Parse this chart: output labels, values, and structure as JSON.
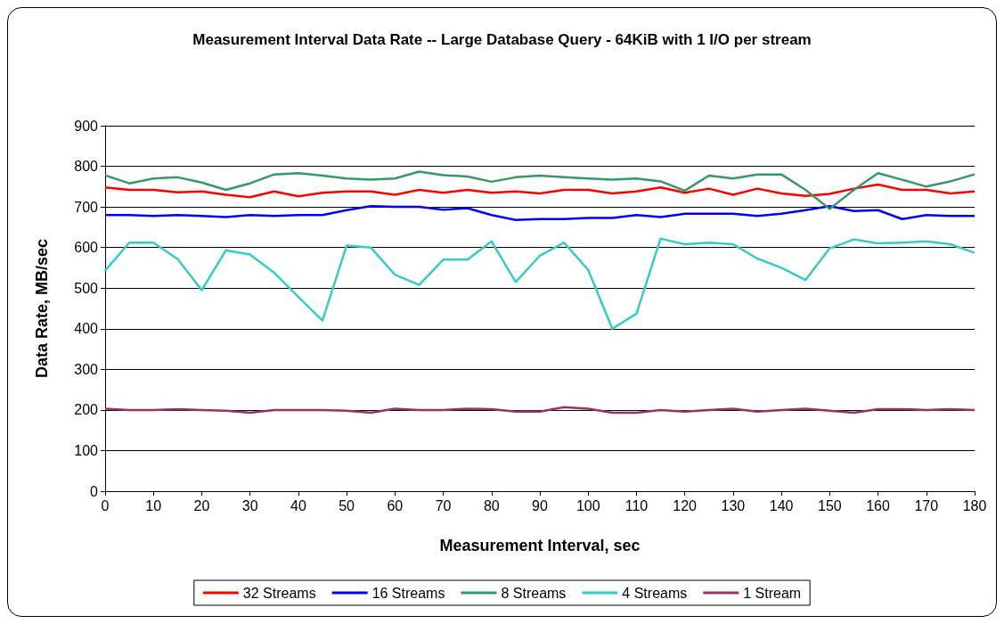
{
  "chart_data": {
    "type": "line",
    "title": "Measurement Interval Data Rate -- Large Database Query - 64KiB with 1 I/O per stream",
    "xlabel": "Measurement Interval, sec",
    "ylabel": "Data Rate, MB/sec",
    "x": [
      0,
      5,
      10,
      15,
      20,
      25,
      30,
      35,
      40,
      45,
      50,
      55,
      60,
      65,
      70,
      75,
      80,
      85,
      90,
      95,
      100,
      105,
      110,
      115,
      120,
      125,
      130,
      135,
      140,
      145,
      150,
      155,
      160,
      165,
      170,
      175,
      180
    ],
    "xlim": [
      0,
      180
    ],
    "xticks": [
      0,
      10,
      20,
      30,
      40,
      50,
      60,
      70,
      80,
      90,
      100,
      110,
      120,
      130,
      140,
      150,
      160,
      170,
      180
    ],
    "ylim": [
      0,
      900
    ],
    "yticks": [
      0,
      100,
      200,
      300,
      400,
      500,
      600,
      700,
      800,
      900
    ],
    "grid": "y",
    "legend": "bottom",
    "marker": "none",
    "line_style": "solid",
    "series": [
      {
        "name": "32 Streams",
        "color": "#ff0000",
        "values": [
          748,
          742,
          742,
          736,
          738,
          730,
          724,
          738,
          726,
          735,
          738,
          738,
          730,
          742,
          735,
          742,
          735,
          738,
          733,
          742,
          742,
          733,
          738,
          748,
          735,
          745,
          730,
          745,
          733,
          727,
          732,
          745,
          755,
          742,
          742,
          733,
          738
        ]
      },
      {
        "name": "16 Streams",
        "color": "#0000ff",
        "values": [
          680,
          680,
          678,
          680,
          678,
          675,
          680,
          678,
          680,
          680,
          692,
          702,
          700,
          700,
          693,
          697,
          680,
          668,
          670,
          670,
          673,
          673,
          680,
          675,
          683,
          683,
          683,
          678,
          683,
          692,
          702,
          690,
          692,
          670,
          680,
          678,
          678
        ]
      },
      {
        "name": "8 Streams",
        "color": "#339966",
        "values": [
          778,
          758,
          770,
          773,
          760,
          742,
          758,
          780,
          783,
          777,
          770,
          767,
          770,
          787,
          778,
          775,
          762,
          773,
          777,
          773,
          770,
          767,
          770,
          763,
          740,
          777,
          770,
          780,
          780,
          742,
          695,
          742,
          783,
          767,
          750,
          763,
          780
        ]
      },
      {
        "name": "4 Streams",
        "color": "#33cccc",
        "values": [
          543,
          612,
          612,
          572,
          495,
          593,
          583,
          538,
          478,
          420,
          605,
          600,
          533,
          508,
          570,
          570,
          615,
          515,
          580,
          612,
          545,
          400,
          437,
          622,
          608,
          612,
          608,
          573,
          550,
          520,
          598,
          620,
          610,
          612,
          615,
          608,
          587
        ]
      },
      {
        "name": "1 Stream",
        "color": "#993366",
        "values": [
          203,
          200,
          200,
          202,
          200,
          198,
          193,
          200,
          200,
          200,
          198,
          193,
          203,
          200,
          200,
          203,
          202,
          196,
          196,
          207,
          203,
          193,
          193,
          200,
          196,
          200,
          203,
          196,
          200,
          203,
          198,
          193,
          202,
          202,
          200,
          202,
          200
        ]
      }
    ]
  }
}
